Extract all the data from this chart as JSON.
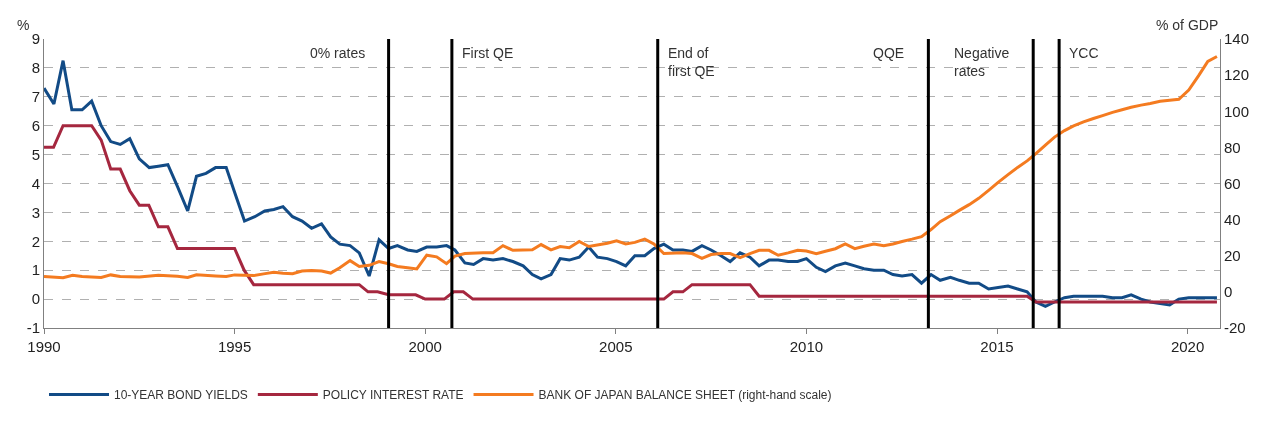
{
  "chart_data": {
    "type": "line",
    "ylabel": "%",
    "y2label": "% of GDP",
    "xlim": [
      1990,
      2020.85
    ],
    "xticks": [
      1990,
      1995,
      2000,
      2005,
      2010,
      2015,
      2020
    ],
    "ylim": [
      -1,
      9
    ],
    "yticks": [
      -1,
      0,
      1,
      2,
      3,
      4,
      5,
      6,
      7,
      8,
      9
    ],
    "y2lim": [
      -20,
      140
    ],
    "y2ticks": [
      -20,
      0,
      20,
      40,
      60,
      80,
      100,
      120,
      140
    ],
    "grid": "y",
    "legend": "bottom",
    "line_style": "solid",
    "marker": "none",
    "ref_lines": [
      {
        "axis": "x",
        "value": 1999.04,
        "label": "0% rates",
        "color": "#000000"
      },
      {
        "axis": "x",
        "value": 2000.7,
        "label": "First QE",
        "color": "#000000"
      },
      {
        "axis": "x",
        "value": 2006.1,
        "label": "End of\nfirst QE",
        "color": "#000000"
      },
      {
        "axis": "x",
        "value": 2013.2,
        "label": "QQE",
        "color": "#000000"
      },
      {
        "axis": "x",
        "value": 2015.95,
        "label": "Negative\nrates",
        "color": "#000000"
      },
      {
        "axis": "x",
        "value": 2016.63,
        "label": "YCC",
        "color": "#000000"
      }
    ],
    "series": [
      {
        "name": "10-YEAR BOND YIELDS",
        "color": "#124b86",
        "x": [
          1990.0,
          1990.26,
          1990.5,
          1990.73,
          1991.0,
          1991.25,
          1991.5,
          1991.75,
          1992.0,
          1992.25,
          1992.5,
          1992.76,
          1993.0,
          1993.25,
          1993.5,
          1993.77,
          1994.0,
          1994.25,
          1994.5,
          1994.78,
          1995.0,
          1995.26,
          1995.53,
          1995.79,
          1996.03,
          1996.27,
          1996.52,
          1996.77,
          1997.02,
          1997.28,
          1997.52,
          1997.76,
          1998.03,
          1998.27,
          1998.53,
          1998.79,
          1999.04,
          1999.27,
          1999.54,
          1999.78,
          2000.04,
          2000.3,
          2000.56,
          2000.78,
          2001.04,
          2001.27,
          2001.52,
          2001.78,
          2002.04,
          2002.3,
          2002.57,
          2002.81,
          2003.04,
          2003.3,
          2003.54,
          2003.78,
          2004.04,
          2004.29,
          2004.52,
          2004.78,
          2005.02,
          2005.26,
          2005.5,
          2005.76,
          2006.0,
          2006.26,
          2006.5,
          2006.76,
          2007.0,
          2007.26,
          2007.5,
          2007.76,
          2008.0,
          2008.26,
          2008.52,
          2008.76,
          2009.02,
          2009.26,
          2009.52,
          2009.77,
          2010.0,
          2010.26,
          2010.5,
          2010.76,
          2011.02,
          2011.27,
          2011.51,
          2011.77,
          2012.03,
          2012.27,
          2012.51,
          2012.77,
          2013.02,
          2013.27,
          2013.51,
          2013.78,
          2014.01,
          2014.27,
          2014.52,
          2014.78,
          2015.03,
          2015.29,
          2015.54,
          2015.79,
          2016.02,
          2016.27,
          2016.51,
          2016.77,
          2017.01,
          2017.27,
          2017.53,
          2017.77,
          2018.03,
          2018.28,
          2018.52,
          2018.78,
          2019.02,
          2019.28,
          2019.53,
          2019.77,
          2020.03,
          2020.29,
          2020.77
        ],
        "values": [
          7.3,
          6.75,
          8.25,
          6.55,
          6.55,
          6.85,
          6.0,
          5.45,
          5.35,
          5.55,
          4.85,
          4.55,
          4.6,
          4.65,
          3.9,
          3.05,
          4.25,
          4.35,
          4.55,
          4.55,
          3.7,
          2.7,
          2.85,
          3.05,
          3.1,
          3.2,
          2.85,
          2.7,
          2.45,
          2.6,
          2.15,
          1.9,
          1.85,
          1.6,
          0.8,
          2.05,
          1.75,
          1.85,
          1.7,
          1.65,
          1.8,
          1.8,
          1.85,
          1.7,
          1.25,
          1.2,
          1.4,
          1.35,
          1.4,
          1.3,
          1.15,
          0.85,
          0.7,
          0.85,
          1.4,
          1.35,
          1.45,
          1.8,
          1.45,
          1.4,
          1.3,
          1.15,
          1.5,
          1.5,
          1.75,
          1.9,
          1.7,
          1.7,
          1.65,
          1.85,
          1.7,
          1.5,
          1.3,
          1.6,
          1.45,
          1.15,
          1.35,
          1.35,
          1.3,
          1.3,
          1.4,
          1.1,
          0.95,
          1.15,
          1.25,
          1.15,
          1.05,
          1.0,
          1.0,
          0.85,
          0.8,
          0.85,
          0.55,
          0.85,
          0.65,
          0.75,
          0.65,
          0.55,
          0.55,
          0.35,
          0.4,
          0.45,
          0.35,
          0.25,
          -0.1,
          -0.25,
          -0.1,
          0.05,
          0.1,
          0.1,
          0.1,
          0.1,
          0.05,
          0.05,
          0.15,
          0.0,
          -0.1,
          -0.15,
          -0.2,
          0.0,
          0.05,
          0.05,
          0.05
        ]
      },
      {
        "name": "POLICY INTEREST RATE",
        "color": "#a5273f",
        "x": [
          1990.0,
          1990.25,
          1990.5,
          1991.25,
          1991.5,
          1991.75,
          1992.0,
          1992.25,
          1992.5,
          1992.75,
          1993.0,
          1993.25,
          1993.5,
          1995.0,
          1995.25,
          1995.5,
          1998.27,
          1998.5,
          1998.75,
          1999.04,
          1999.75,
          2000.0,
          2000.5,
          2000.75,
          2001.0,
          2001.25,
          2006.26,
          2006.5,
          2006.76,
          2007.0,
          2008.52,
          2008.76,
          2015.79,
          2016.02,
          2020.77
        ],
        "values": [
          5.25,
          5.25,
          6.0,
          6.0,
          5.5,
          4.5,
          4.5,
          3.75,
          3.25,
          3.25,
          2.5,
          2.5,
          1.75,
          1.75,
          1.0,
          0.5,
          0.5,
          0.25,
          0.25,
          0.15,
          0.15,
          0.0,
          0.0,
          0.25,
          0.25,
          0.0,
          0.0,
          0.25,
          0.25,
          0.5,
          0.5,
          0.1,
          0.1,
          -0.1,
          -0.1
        ]
      },
      {
        "name": "BANK OF JAPAN BALANCE SHEET (right-hand scale)",
        "color": "#f47b20",
        "axis": "y2",
        "x": [
          1990.0,
          1990.5,
          1990.75,
          1991.0,
          1991.5,
          1991.75,
          1992.0,
          1992.5,
          1993.0,
          1993.5,
          1993.77,
          1994.0,
          1994.5,
          1994.78,
          1995.0,
          1995.5,
          1995.8,
          1996.03,
          1996.27,
          1996.52,
          1996.77,
          1997.02,
          1997.28,
          1997.52,
          1997.76,
          1998.03,
          1998.27,
          1998.53,
          1998.79,
          1999.04,
          1999.27,
          1999.54,
          1999.78,
          2000.04,
          2000.3,
          2000.56,
          2000.78,
          2001.04,
          2001.52,
          2001.78,
          2002.04,
          2002.3,
          2002.81,
          2003.04,
          2003.3,
          2003.54,
          2003.78,
          2004.04,
          2004.29,
          2004.78,
          2005.02,
          2005.26,
          2005.5,
          2005.76,
          2006.0,
          2006.26,
          2006.76,
          2007.0,
          2007.26,
          2007.5,
          2007.76,
          2008.0,
          2008.26,
          2008.52,
          2008.76,
          2009.02,
          2009.26,
          2009.52,
          2009.77,
          2010.0,
          2010.26,
          2010.5,
          2010.76,
          2011.02,
          2011.27,
          2011.51,
          2011.77,
          2012.03,
          2012.27,
          2012.51,
          2012.77,
          2013.02,
          2013.27,
          2013.51,
          2013.78,
          2014.01,
          2014.27,
          2014.52,
          2014.78,
          2015.03,
          2015.29,
          2015.54,
          2015.79,
          2016.02,
          2016.27,
          2016.51,
          2016.77,
          2017.01,
          2017.27,
          2017.53,
          2017.77,
          2018.03,
          2018.28,
          2018.52,
          2018.78,
          2019.02,
          2019.28,
          2019.53,
          2019.77,
          2020.03,
          2020.29,
          2020.53,
          2020.77
        ],
        "values": [
          8.5,
          7.8,
          9.2,
          8.5,
          8.0,
          9.4,
          8.5,
          8.3,
          9.2,
          8.7,
          8.0,
          9.5,
          8.8,
          8.5,
          9.4,
          9.0,
          10.1,
          10.8,
          10.3,
          10.1,
          11.5,
          11.8,
          11.5,
          10.4,
          13.3,
          17.3,
          14.1,
          14.7,
          16.8,
          15.6,
          14.1,
          13.3,
          12.7,
          20.3,
          19.4,
          15.6,
          19.8,
          21.2,
          21.7,
          21.7,
          25.6,
          23.0,
          23.3,
          26.2,
          23.3,
          25.1,
          24.4,
          27.9,
          25.1,
          26.9,
          28.3,
          26.5,
          27.4,
          29.2,
          26.5,
          21.2,
          21.6,
          21.2,
          18.6,
          20.7,
          21.2,
          21.2,
          18.9,
          21.2,
          23.0,
          23.0,
          20.3,
          21.6,
          23.0,
          22.6,
          21.2,
          22.5,
          23.9,
          26.5,
          23.9,
          25.3,
          26.5,
          25.6,
          26.5,
          27.9,
          29.2,
          30.6,
          34.5,
          38.9,
          42.1,
          45.1,
          48.3,
          51.8,
          56.2,
          60.6,
          64.9,
          68.9,
          72.5,
          76.5,
          81.3,
          85.7,
          89.3,
          91.9,
          94.1,
          96.0,
          97.6,
          99.4,
          100.8,
          102.2,
          103.4,
          104.3,
          105.5,
          106.1,
          106.6,
          111.7,
          119.7,
          127.6,
          130.3
        ]
      }
    ]
  }
}
